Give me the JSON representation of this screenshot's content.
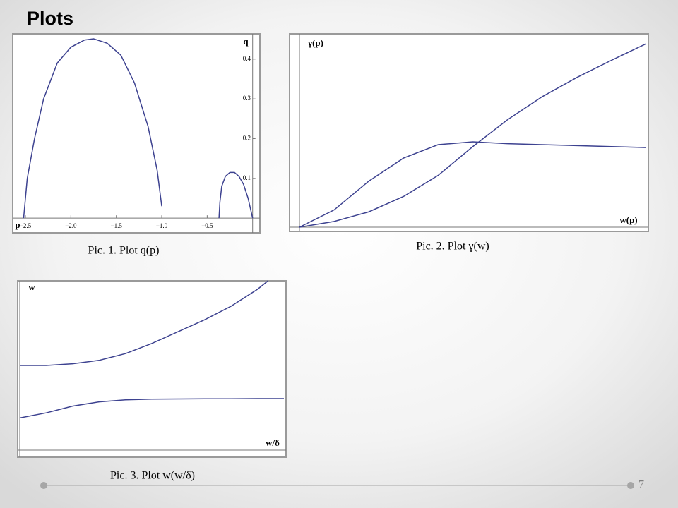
{
  "slide": {
    "title": "Plots",
    "page_number": "7"
  },
  "chart_data": [
    {
      "type": "line",
      "caption": "Pic. 1. Plot q(p)",
      "x_label": "p",
      "y_label": "q",
      "xlim": [
        -2.64,
        0.08
      ],
      "ylim": [
        -0.037,
        0.46
      ],
      "xticks": [
        {
          "value": -2.5,
          "label": "−2.5"
        },
        {
          "value": -2,
          "label": "−2.0"
        },
        {
          "value": -1.5,
          "label": "−1.5"
        },
        {
          "value": -1,
          "label": "−1.0"
        },
        {
          "value": -0.5,
          "label": "−0.5"
        }
      ],
      "yticks": [
        0.1,
        0.2,
        0.3,
        0.4
      ],
      "series": [
        {
          "color": "#3d4290",
          "x": [
            -2.52,
            -2.48,
            -2.4,
            -2.3,
            -2.15,
            -2.0,
            -1.85,
            -1.75,
            -1.6,
            -1.45,
            -1.3,
            -1.15,
            -1.05,
            -1.0
          ],
          "values": [
            0,
            0.1,
            0.2,
            0.3,
            0.39,
            0.43,
            0.448,
            0.451,
            0.44,
            0.41,
            0.34,
            0.23,
            0.12,
            0.03
          ]
        },
        {
          "color": "#3d4290",
          "x": [
            -0.37,
            -0.36,
            -0.34,
            -0.3,
            -0.25,
            -0.2,
            -0.15,
            -0.1,
            -0.05,
            -0.02,
            0
          ],
          "values": [
            0,
            0.04,
            0.08,
            0.105,
            0.115,
            0.115,
            0.105,
            0.085,
            0.05,
            0.02,
            0
          ]
        }
      ]
    },
    {
      "type": "line",
      "caption": "Pic. 2. Plot γ(w)",
      "x_label": "w(p)",
      "y_label": "γ(p)",
      "xlim": [
        0,
        10
      ],
      "ylim": [
        0,
        1
      ],
      "series": [
        {
          "color": "#3d4290",
          "x": [
            0,
            1,
            2,
            3,
            4,
            5,
            6,
            7,
            8,
            9,
            10
          ],
          "values": [
            0,
            0.09,
            0.24,
            0.36,
            0.43,
            0.445,
            0.435,
            0.43,
            0.425,
            0.42,
            0.415
          ]
        },
        {
          "color": "#3d4290",
          "x": [
            0,
            1,
            2,
            3,
            4,
            5,
            6,
            7,
            8,
            9,
            10
          ],
          "values": [
            0,
            0.03,
            0.08,
            0.16,
            0.27,
            0.42,
            0.56,
            0.68,
            0.78,
            0.87,
            0.956
          ]
        }
      ]
    },
    {
      "type": "line",
      "caption": "Pic. 3. Plot w(w/δ)",
      "x_label": "w/δ",
      "y_label": "w",
      "xlim": [
        0,
        10
      ],
      "ylim": [
        0,
        1
      ],
      "series": [
        {
          "color": "#3d4290",
          "x": [
            0,
            1,
            2,
            3,
            4,
            5,
            6,
            7,
            8,
            9,
            9.4
          ],
          "values": [
            0.5,
            0.5,
            0.51,
            0.53,
            0.57,
            0.63,
            0.7,
            0.77,
            0.85,
            0.95,
            1.0
          ]
        },
        {
          "color": "#3d4290",
          "x": [
            0,
            1,
            2,
            3,
            4,
            5,
            6,
            7,
            8,
            9,
            10
          ],
          "values": [
            0.19,
            0.22,
            0.26,
            0.285,
            0.297,
            0.301,
            0.302,
            0.303,
            0.303,
            0.304,
            0.304
          ]
        }
      ]
    }
  ]
}
